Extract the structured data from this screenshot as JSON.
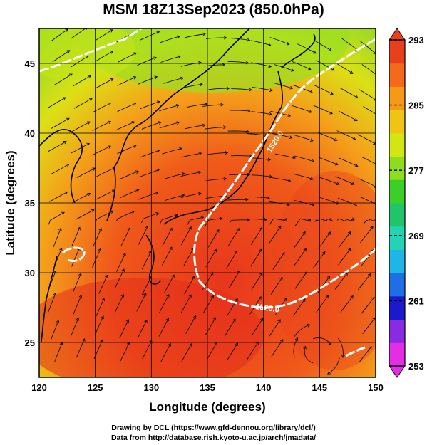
{
  "title": "MSM 18Z13Sep2023 (850.0hPa)",
  "x_axis": {
    "label": "Longitude (degrees)",
    "ticks": [
      "120",
      "125",
      "130",
      "135",
      "140",
      "145",
      "150"
    ]
  },
  "y_axis": {
    "label": "Latitude  (degrees)",
    "ticks": [
      "25",
      "30",
      "35",
      "40",
      "45"
    ]
  },
  "colorbar": {
    "ticks": [
      "253",
      "261",
      "269",
      "277",
      "285",
      "293"
    ],
    "colors": [
      "#e62de6",
      "#8a2be2",
      "#1a1acc",
      "#1e6fe6",
      "#1fb5e6",
      "#22d4b4",
      "#22c46a",
      "#3ccf28",
      "#8fdc1e",
      "#d2e614",
      "#f0c414",
      "#f59a18",
      "#f26a1a",
      "#e8401c"
    ]
  },
  "contour_labels": [
    "1520.0",
    "1520.0"
  ],
  "credits": {
    "line1": "Drawing by DCL (https://www.gfd-dennou.org/library/dcl/)",
    "line2": "Data from http://database.rish.kyoto-u.ac.jp/arch/jmadata/"
  },
  "chart_data": {
    "type": "heatmap",
    "title": "MSM 18Z13Sep2023 (850.0hPa)",
    "xlabel": "Longitude (degrees)",
    "ylabel": "Latitude  (degrees)",
    "xlim": [
      120,
      150
    ],
    "ylim": [
      22.5,
      47.5
    ],
    "colorbar_range": [
      253,
      293
    ],
    "colorbar_ticks": [
      253,
      261,
      269,
      277,
      285,
      293
    ],
    "contour": {
      "value": 1520.0,
      "color": "#ffffff"
    },
    "overlays": [
      "streamlines",
      "coastlines",
      "lat-lon grid"
    ]
  }
}
